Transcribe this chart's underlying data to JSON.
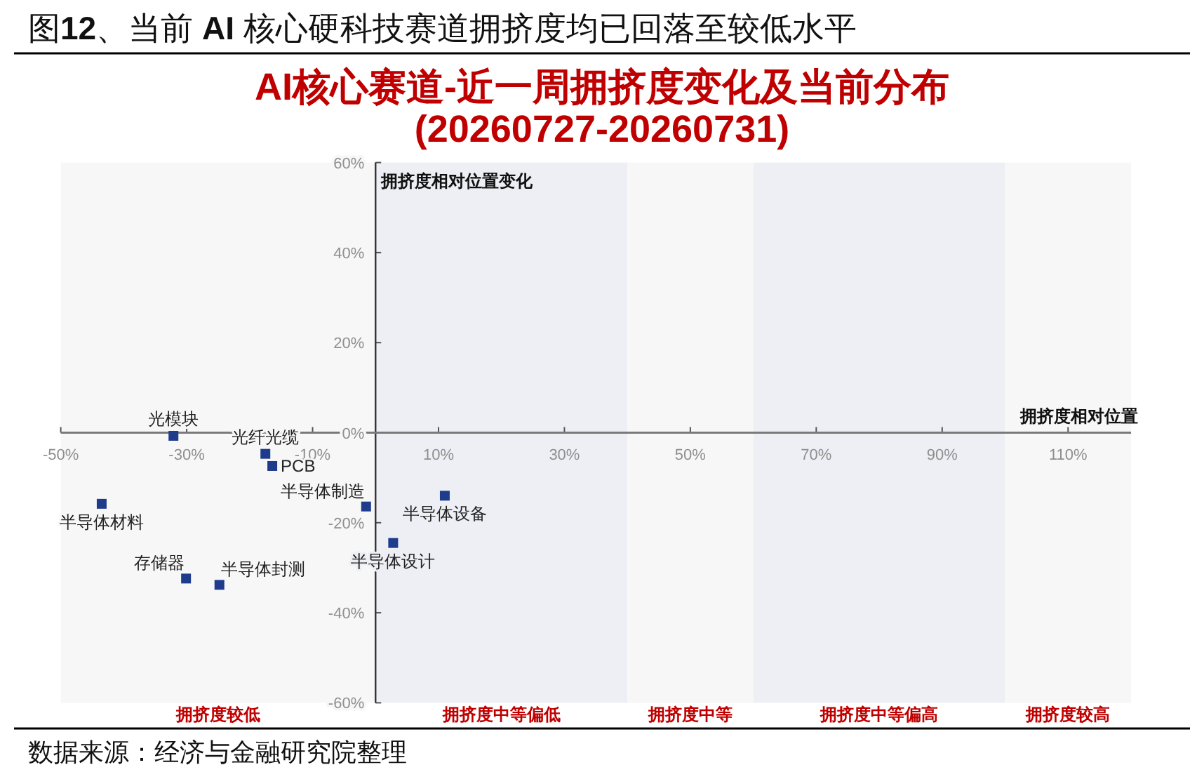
{
  "chart_data": {
    "type": "scatter",
    "title": "图12、当前 AI 核心硬科技赛道拥挤度均已回落至较低水平",
    "subtitle": "AI核心赛道-近一周拥挤度变化及当前分布\n(20260727-20260731)",
    "xlabel": "拥挤度相对位置",
    "ylabel": "拥挤度相对位置变化",
    "marker": "square",
    "xlim": [
      -50,
      120
    ],
    "ylim": [
      -60,
      60
    ],
    "xticks": [
      {
        "value": -50,
        "label": "-50%"
      },
      {
        "value": -30,
        "label": "-30%"
      },
      {
        "value": -10,
        "label": "-10%"
      },
      {
        "value": 10,
        "label": "10%"
      },
      {
        "value": 30,
        "label": "30%"
      },
      {
        "value": 50,
        "label": "50%"
      },
      {
        "value": 70,
        "label": "70%"
      },
      {
        "value": 90,
        "label": "90%"
      },
      {
        "value": 110,
        "label": "110%"
      }
    ],
    "yticks": [
      {
        "value": 60,
        "label": "60%"
      },
      {
        "value": 40,
        "label": "40%"
      },
      {
        "value": 20,
        "label": "20%"
      },
      {
        "value": 0,
        "label": "0%"
      },
      {
        "value": -20,
        "label": "-20%"
      },
      {
        "value": -40,
        "label": "-40%"
      },
      {
        "value": -60,
        "label": "-60%"
      }
    ],
    "bands": [
      {
        "axis": "x",
        "from": -50,
        "to": 0,
        "label": "拥挤度较低",
        "color": "#f7f7f7"
      },
      {
        "axis": "x",
        "from": 0,
        "to": 40,
        "label": "拥挤度中等偏低",
        "color": "#eeeff4"
      },
      {
        "axis": "x",
        "from": 40,
        "to": 60,
        "label": "拥挤度中等",
        "color": "#f7f7f7"
      },
      {
        "axis": "x",
        "from": 60,
        "to": 100,
        "label": "拥挤度中等偏高",
        "color": "#eeeff4"
      },
      {
        "axis": "x",
        "from": 100,
        "to": 120,
        "label": "拥挤度较高",
        "color": "#f7f7f7"
      }
    ],
    "series": [
      {
        "name": "光模块",
        "color": "#1f3b8c",
        "x": [
          -32.1
        ],
        "values": [
          -0.7
        ]
      },
      {
        "name": "光纤光缆",
        "color": "#1f3b8c",
        "x": [
          -17.5
        ],
        "values": [
          -4.7
        ]
      },
      {
        "name": "PCB",
        "color": "#1f3b8c",
        "x": [
          -16.4
        ],
        "values": [
          -7.4
        ]
      },
      {
        "name": "半导体材料",
        "color": "#1f3b8c",
        "x": [
          -43.5
        ],
        "values": [
          -15.8
        ]
      },
      {
        "name": "半导体制造",
        "color": "#1f3b8c",
        "x": [
          -1.5
        ],
        "values": [
          -16.4
        ]
      },
      {
        "name": "半导体设备",
        "color": "#1f3b8c",
        "x": [
          11.0
        ],
        "values": [
          -14.0
        ]
      },
      {
        "name": "半导体设计",
        "color": "#1f3b8c",
        "x": [
          2.8
        ],
        "values": [
          -24.5
        ]
      },
      {
        "name": "存储器",
        "color": "#1f3b8c",
        "x": [
          -30.1
        ],
        "values": [
          -32.4
        ]
      },
      {
        "name": "半导体封测",
        "color": "#1f3b8c",
        "x": [
          -24.8
        ],
        "values": [
          -33.8
        ]
      }
    ],
    "annotations": [
      "数据来源：经济与金融研究院整理"
    ]
  }
}
